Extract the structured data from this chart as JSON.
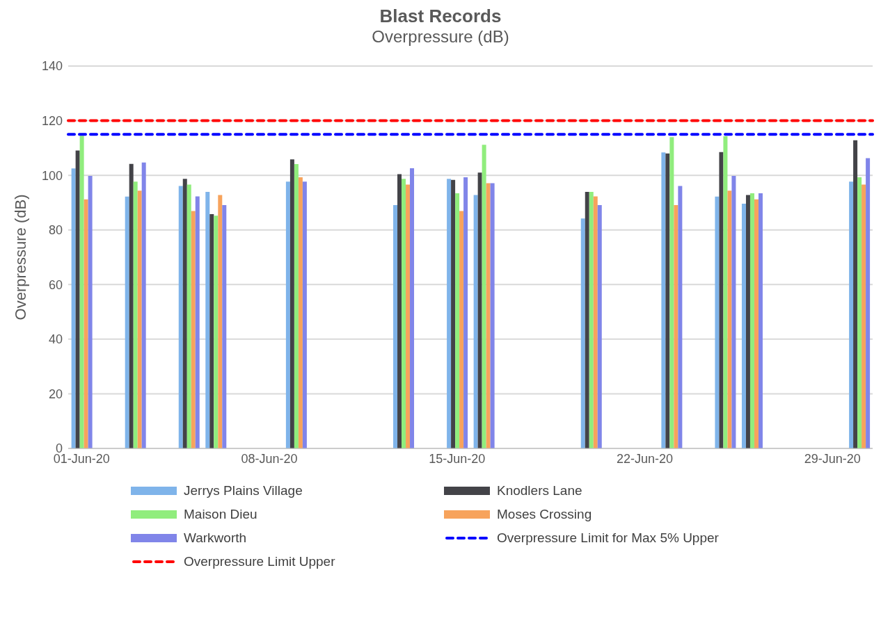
{
  "chart_data": {
    "type": "bar",
    "title": "Blast Records",
    "subtitle": "Overpressure (dB)",
    "ylabel": "Overpressure (dB)",
    "categories": [
      "01-Jun-20",
      null,
      null,
      null,
      null,
      null,
      null,
      "08-Jun-20",
      null,
      null,
      null,
      null,
      null,
      null,
      "15-Jun-20",
      null,
      null,
      null,
      null,
      null,
      null,
      "22-Jun-20",
      null,
      null,
      null,
      null,
      null,
      null,
      "29-Jun-20",
      null
    ],
    "series": [
      {
        "name": "Jerrys Plains Village",
        "color": "#7fb4ea",
        "values": [
          102.5,
          null,
          92.2,
          null,
          96.1,
          93.9,
          null,
          null,
          97.7,
          null,
          null,
          null,
          89.1,
          null,
          98.7,
          92.8,
          null,
          null,
          null,
          84.2,
          null,
          null,
          108.4,
          null,
          92.2,
          89.6,
          null,
          null,
          null,
          97.7
        ]
      },
      {
        "name": "Knodlers Lane",
        "color": "#434348",
        "values": [
          109.1,
          null,
          104.2,
          null,
          98.7,
          85.8,
          null,
          null,
          105.8,
          null,
          null,
          null,
          100.4,
          null,
          98.3,
          101.0,
          null,
          null,
          null,
          93.9,
          null,
          null,
          108.0,
          null,
          108.5,
          92.8,
          null,
          null,
          null,
          112.8
        ]
      },
      {
        "name": "Maison Dieu",
        "color": "#90ed7d",
        "values": [
          114.5,
          null,
          97.7,
          null,
          96.6,
          85.2,
          null,
          null,
          104.1,
          null,
          null,
          null,
          98.7,
          null,
          93.4,
          111.2,
          null,
          null,
          null,
          93.9,
          null,
          null,
          114.0,
          null,
          114.3,
          93.4,
          null,
          null,
          null,
          99.3
        ]
      },
      {
        "name": "Moses Crossing",
        "color": "#f7a35c",
        "values": [
          91.2,
          null,
          94.4,
          null,
          86.9,
          92.8,
          null,
          null,
          99.3,
          null,
          null,
          null,
          96.6,
          null,
          86.9,
          97.1,
          null,
          null,
          null,
          92.3,
          null,
          null,
          89.1,
          null,
          94.4,
          91.2,
          null,
          null,
          null,
          96.6
        ]
      },
      {
        "name": "Warkworth",
        "color": "#8085e9",
        "values": [
          99.8,
          null,
          104.7,
          null,
          92.3,
          89.1,
          null,
          null,
          97.7,
          null,
          null,
          null,
          102.6,
          null,
          99.3,
          97.1,
          null,
          null,
          null,
          89.1,
          null,
          null,
          96.1,
          null,
          99.8,
          93.4,
          null,
          null,
          null,
          106.3
        ]
      }
    ],
    "ref_lines": [
      {
        "axis": "y",
        "value": 115,
        "label": "Overpressure Limit for Max 5% Upper",
        "color": "#0000ff",
        "line_style": "dashed"
      },
      {
        "axis": "y",
        "value": 120,
        "label": "Overpressure Limit Upper",
        "color": "#ff0000",
        "line_style": "dashed"
      }
    ],
    "ylim": [
      0,
      140
    ],
    "yticks": [
      0,
      20,
      40,
      60,
      80,
      100,
      120,
      140
    ],
    "grid": "y",
    "legend": "bottom"
  }
}
